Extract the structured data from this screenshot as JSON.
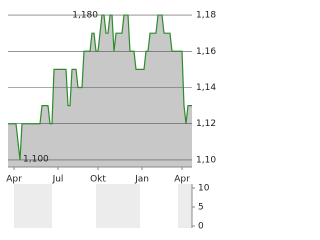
{
  "chart_data": [
    {
      "type": "line",
      "values": [
        1.12,
        1.12,
        1.12,
        1.12,
        1.12,
        1.11,
        1.1,
        1.12,
        1.12,
        1.12,
        1.12,
        1.12,
        1.12,
        1.12,
        1.12,
        1.12,
        1.12,
        1.13,
        1.13,
        1.13,
        1.13,
        1.12,
        1.12,
        1.15,
        1.15,
        1.15,
        1.15,
        1.15,
        1.15,
        1.15,
        1.13,
        1.13,
        1.15,
        1.15,
        1.15,
        1.14,
        1.14,
        1.14,
        1.16,
        1.16,
        1.16,
        1.16,
        1.17,
        1.17,
        1.16,
        1.16,
        1.17,
        1.18,
        1.18,
        1.17,
        1.17,
        1.18,
        1.18,
        1.16,
        1.17,
        1.17,
        1.17,
        1.17,
        1.18,
        1.18,
        1.18,
        1.16,
        1.16,
        1.16,
        1.15,
        1.15,
        1.15,
        1.15,
        1.15,
        1.16,
        1.16,
        1.17,
        1.17,
        1.17,
        1.17,
        1.18,
        1.18,
        1.18,
        1.17,
        1.17,
        1.17,
        1.17,
        1.16,
        1.16,
        1.16,
        1.16,
        1.16,
        1.16,
        1.13,
        1.12,
        1.13,
        1.13,
        1.13
      ],
      "color": "#2e8b2e",
      "area_color": "#c8c8c8",
      "xlim": [
        0,
        92
      ],
      "xticks": [
        {
          "value": 3,
          "label": "Apr"
        },
        {
          "value": 25,
          "label": "Jul"
        },
        {
          "value": 45,
          "label": "Okt"
        },
        {
          "value": 67,
          "label": "Jan"
        },
        {
          "value": 87,
          "label": "Apr"
        }
      ],
      "ylim": [
        1.0961,
        1.1839
      ],
      "yticks": [
        {
          "value": 1.1,
          "label": "1,10"
        },
        {
          "value": 1.12,
          "label": "1,12"
        },
        {
          "value": 1.14,
          "label": "1,14"
        },
        {
          "value": 1.16,
          "label": "1,16"
        },
        {
          "value": 1.18,
          "label": "1,18"
        }
      ],
      "grid": true,
      "annotations": [
        {
          "label": "1,180",
          "value": 1.18
        },
        {
          "label": "1,100",
          "value": 1.1
        }
      ]
    },
    {
      "type": "bar",
      "ylim": [
        0,
        10
      ],
      "yticks": [
        0,
        5,
        10
      ]
    }
  ]
}
